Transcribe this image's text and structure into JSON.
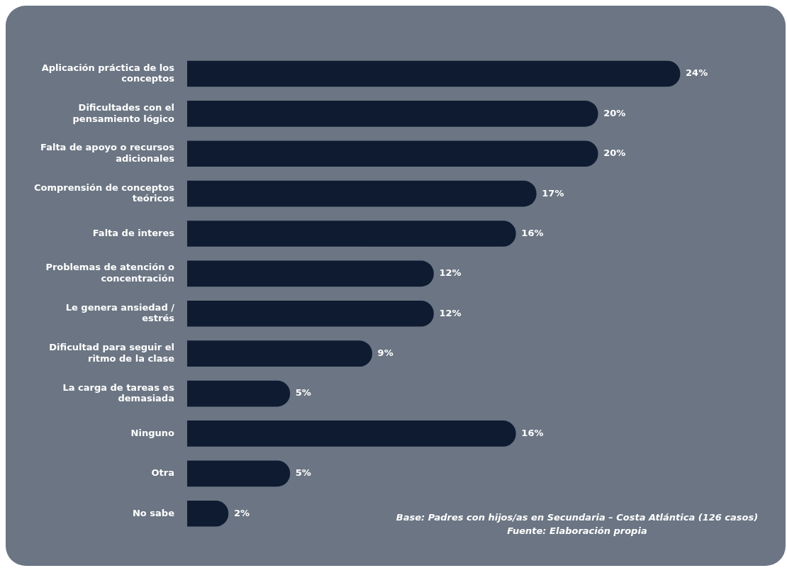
{
  "chart_data": {
    "type": "bar",
    "orientation": "horizontal",
    "categories": [
      "Aplicación práctica de los conceptos",
      "Dificultades con el pensamiento lógico",
      "Falta de apoyo o recursos adicionales",
      "Comprensión de conceptos teóricos",
      "Falta de interes",
      "Problemas de atención o concentración",
      "Le genera ansiedad / estrés",
      "Dificultad para seguir el ritmo de la clase",
      "La carga de tareas es demasiada",
      "Ninguno",
      "Otra",
      "No sabe"
    ],
    "values": [
      24,
      20,
      20,
      17,
      16,
      12,
      12,
      9,
      5,
      16,
      5,
      2
    ],
    "value_labels": [
      "24%",
      "20%",
      "20%",
      "17%",
      "16%",
      "12%",
      "12%",
      "9%",
      "5%",
      "16%",
      "5%",
      "2%"
    ],
    "color": "#0e1b31",
    "legend": false,
    "tick_labels": "y",
    "annotations": [
      "Base: Padres con hijos/as en Secundaria – Costa Atlántica (126 casos)",
      "Fuente: Elaboración propia"
    ]
  }
}
